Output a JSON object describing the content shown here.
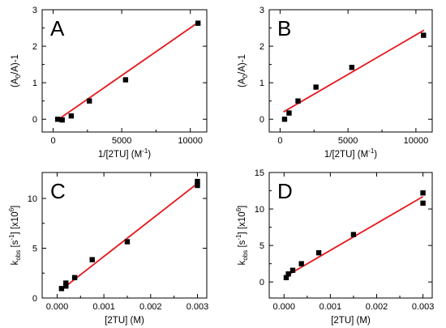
{
  "chart_data": [
    {
      "type": "scatter",
      "panel_label": "A",
      "xlabel": {
        "base": "1/[2TU] (M",
        "sup": "-1",
        "tail": ")"
      },
      "ylabel": {
        "pre": "(A",
        "sub": "0",
        "post": "/A)-1"
      },
      "xlim": [
        -800,
        11200
      ],
      "ylim": [
        -0.35,
        3.0
      ],
      "xticks": [
        0,
        5000,
        10000
      ],
      "xtick_labels": [
        "0",
        "5000",
        "10000"
      ],
      "yticks": [
        0,
        1,
        2,
        3
      ],
      "ytick_labels": [
        "0",
        "1",
        "2",
        "3"
      ],
      "series": [
        {
          "points": [
            [
              330,
              0.0
            ],
            [
              660,
              -0.02
            ],
            [
              1320,
              0.09
            ],
            [
              2640,
              0.5
            ],
            [
              5280,
              1.08
            ],
            [
              10560,
              2.63
            ]
          ],
          "marker_color": "#000000",
          "fit": {
            "x": [
              250,
              10600
            ],
            "y": [
              -0.04,
              2.66
            ],
            "color": "#e8161b"
          }
        }
      ]
    },
    {
      "type": "scatter",
      "panel_label": "B",
      "xlabel": {
        "base": "1/[2TU] (M",
        "sup": "-1",
        "tail": ")"
      },
      "ylabel": {
        "pre": "(A",
        "sub": "0",
        "post": "/A)-1"
      },
      "xlim": [
        -800,
        11200
      ],
      "ylim": [
        -0.35,
        3.0
      ],
      "xticks": [
        0,
        5000,
        10000
      ],
      "xtick_labels": [
        "0",
        "5000",
        "10000"
      ],
      "yticks": [
        0,
        1,
        2,
        3
      ],
      "ytick_labels": [
        "0",
        "1",
        "2",
        "3"
      ],
      "series": [
        {
          "points": [
            [
              330,
              0.0
            ],
            [
              660,
              0.17
            ],
            [
              1320,
              0.5
            ],
            [
              2640,
              0.88
            ],
            [
              5280,
              1.42
            ],
            [
              10560,
              2.3
            ]
          ],
          "marker_color": "#000000",
          "fit": {
            "x": [
              250,
              10600
            ],
            "y": [
              0.2,
              2.44
            ],
            "color": "#e8161b"
          }
        }
      ]
    },
    {
      "type": "scatter",
      "panel_label": "C",
      "xlabel": {
        "base": "[2TU] (M)"
      },
      "ylabel": {
        "pre": "k",
        "sub": "obs",
        "post": " [s",
        "sup": "-1",
        "post2": "] [x10",
        "sup2": "6",
        "post3": "]"
      },
      "xlim": [
        -0.00032,
        0.0032
      ],
      "ylim": [
        0,
        12.6
      ],
      "xticks": [
        0.0,
        0.001,
        0.002,
        0.003
      ],
      "xtick_labels": [
        "0.000",
        "0.001",
        "0.002",
        "0.003"
      ],
      "yticks": [
        0,
        5,
        10
      ],
      "ytick_labels": [
        "0",
        "5",
        "10"
      ],
      "series": [
        {
          "points": [
            [
              9.38e-05,
              0.95
            ],
            [
              0.0001875,
              1.2
            ],
            [
              0.000375,
              2.05
            ],
            [
              0.00075,
              3.85
            ],
            [
              0.0015,
              5.65
            ],
            [
              0.003,
              11.3
            ],
            [
              0.003,
              11.7
            ],
            [
              0.0001875,
              1.5
            ]
          ],
          "marker_color": "#000000",
          "fit": {
            "x": [
              8e-05,
              0.003
            ],
            "y": [
              0.8,
              11.5
            ],
            "color": "#e8161b"
          }
        }
      ]
    },
    {
      "type": "scatter",
      "panel_label": "D",
      "xlabel": {
        "base": "[2TU] (M)"
      },
      "ylabel": {
        "pre": "k",
        "sub": "obs",
        "post": " [s",
        "sup": "-1",
        "post2": "] [x10",
        "sup2": "6",
        "post3": "]"
      },
      "xlim": [
        -0.00032,
        0.0032
      ],
      "ylim": [
        -2.2,
        15
      ],
      "xticks": [
        0.0,
        0.001,
        0.002,
        0.003
      ],
      "xtick_labels": [
        "0.000",
        "0.001",
        "0.002",
        "0.003"
      ],
      "yticks": [
        0,
        5,
        10,
        15
      ],
      "ytick_labels": [
        "0",
        "5",
        "10",
        "15"
      ],
      "series": [
        {
          "points": [
            [
              4.69e-05,
              0.6
            ],
            [
              9.38e-05,
              1.1
            ],
            [
              0.0001875,
              1.6
            ],
            [
              0.000375,
              2.5
            ],
            [
              0.00075,
              4.0
            ],
            [
              0.0015,
              6.5
            ],
            [
              0.003,
              10.8
            ],
            [
              0.003,
              12.2
            ]
          ],
          "marker_color": "#000000",
          "fit": {
            "x": [
              4e-05,
              0.003
            ],
            "y": [
              0.8,
              11.7
            ],
            "color": "#e8161b"
          }
        }
      ]
    }
  ]
}
